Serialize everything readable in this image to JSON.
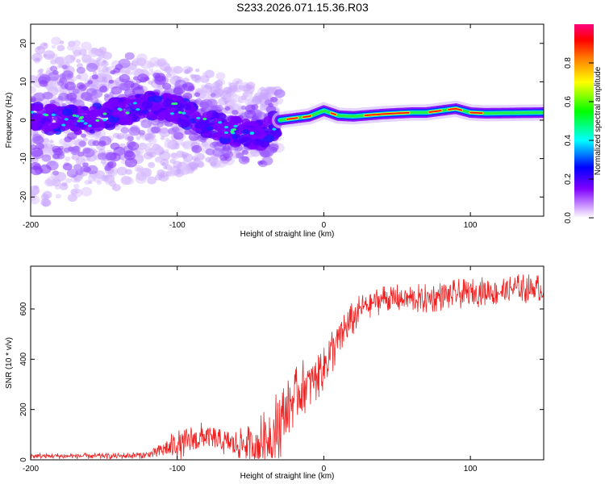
{
  "title": "S233.2026.071.15.36.R03",
  "chart_data": [
    {
      "id": "spectrogram",
      "type": "heatmap",
      "xlabel": "Height of straight line (km)",
      "ylabel": "Frequency (Hz)",
      "xlim": [
        -200,
        150
      ],
      "ylim": [
        -25,
        25
      ],
      "xticks": [
        -200,
        -100,
        0,
        100
      ],
      "yticks": [
        -20,
        -10,
        0,
        10,
        20
      ],
      "colorbar": {
        "label": "Normalized spectral amplitude",
        "range": [
          0,
          1
        ],
        "ticks": [
          "0.0",
          "0.2",
          "0.4",
          "0.6",
          "0.8"
        ],
        "colors": [
          "#ffffff",
          "#cc99ff",
          "#8000ff",
          "#0000ff",
          "#00ffff",
          "#00ff00",
          "#ffff00",
          "#ff8000",
          "#ff0000",
          "#ff0080"
        ]
      },
      "description_series": [
        {
          "name": "scattered energy spread",
          "x_range": [
            -200,
            -30
          ],
          "frequency_spread_hz": [
            -23,
            23
          ],
          "amplitude": 0.1
        },
        {
          "name": "main band",
          "x_range": [
            -200,
            -30
          ],
          "frequency_hz": [
            1,
            1,
            2,
            4,
            3,
            0,
            -2,
            -4,
            0
          ],
          "amplitude": 0.25
        },
        {
          "name": "narrow line",
          "x_range": [
            -30,
            150
          ],
          "frequency_hz": [
            1,
            1,
            1.5,
            2,
            2,
            2.5,
            3,
            2,
            2
          ],
          "amplitude": 0.9
        }
      ]
    },
    {
      "id": "snr",
      "type": "line",
      "xlabel": "Height of straight line (km)",
      "ylabel": "SNR (10 * v/v)",
      "xlim": [
        -200,
        150
      ],
      "ylim": [
        0,
        770
      ],
      "xticks": [
        -200,
        -100,
        0,
        100
      ],
      "yticks": [
        0,
        200,
        400,
        600
      ],
      "color": "#ee2222",
      "series": [
        {
          "name": "SNR",
          "x": [
            -200,
            -180,
            -160,
            -140,
            -120,
            -110,
            -100,
            -90,
            -80,
            -70,
            -60,
            -50,
            -40,
            -35,
            -30,
            -25,
            -20,
            -15,
            -10,
            -5,
            0,
            5,
            10,
            15,
            20,
            25,
            30,
            40,
            50,
            60,
            70,
            80,
            90,
            100,
            110,
            120,
            130,
            140,
            150
          ],
          "values": [
            15,
            15,
            15,
            15,
            20,
            40,
            60,
            80,
            90,
            70,
            60,
            60,
            80,
            110,
            140,
            200,
            250,
            290,
            300,
            340,
            380,
            430,
            480,
            520,
            560,
            600,
            620,
            640,
            640,
            640,
            640,
            650,
            660,
            660,
            670,
            670,
            680,
            680,
            680
          ],
          "noise_amplitude": [
            12,
            12,
            12,
            12,
            15,
            40,
            60,
            70,
            60,
            50,
            60,
            80,
            120,
            150,
            150,
            130,
            110,
            110,
            110,
            110,
            110,
            100,
            90,
            90,
            70,
            60,
            60,
            60,
            60,
            60,
            60,
            60,
            60,
            60,
            60,
            60,
            60,
            60,
            60
          ]
        }
      ]
    }
  ]
}
